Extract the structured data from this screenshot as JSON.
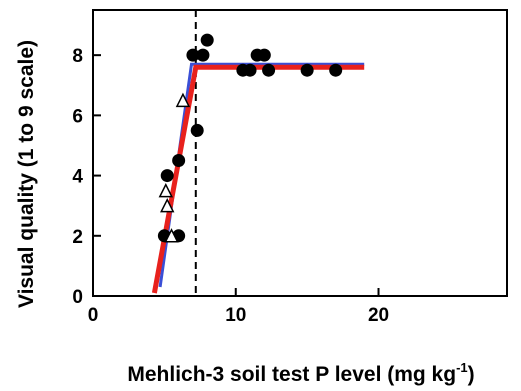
{
  "chart_data": {
    "type": "scatter",
    "xlabel": "Mehlich-3 soil test P level (mg kg",
    "xlabel_sup": "-1",
    "xlabel_close": ")",
    "ylabel": "Visual quality (1 to 9 scale)",
    "xlim": [
      0,
      29
    ],
    "ylim": [
      0,
      9.5
    ],
    "xticks": [
      0,
      10,
      20
    ],
    "yticks": [
      0,
      2,
      4,
      6,
      8
    ],
    "grid": false,
    "series": [
      {
        "marker": "filled-circle",
        "color": "#000000",
        "points": [
          [
            5.0,
            2.0
          ],
          [
            5.2,
            4.0
          ],
          [
            6.0,
            4.5
          ],
          [
            6.0,
            2.0
          ],
          [
            7.0,
            8.0
          ],
          [
            7.3,
            5.5
          ],
          [
            7.7,
            8.0
          ],
          [
            8.0,
            8.5
          ],
          [
            10.5,
            7.5
          ],
          [
            11.0,
            7.5
          ],
          [
            11.5,
            8.0
          ],
          [
            12.0,
            8.0
          ],
          [
            12.3,
            7.5
          ],
          [
            15.0,
            7.5
          ],
          [
            17.0,
            7.5
          ]
        ]
      },
      {
        "marker": "open-triangle",
        "color": "#000000",
        "points": [
          [
            5.1,
            3.5
          ],
          [
            5.2,
            3.0
          ],
          [
            5.5,
            2.0
          ],
          [
            6.3,
            6.5
          ]
        ]
      }
    ],
    "lines": [
      {
        "kind": "segments",
        "color": "#3a4fd6",
        "width": 3,
        "points": [
          [
            4.7,
            0.3
          ],
          [
            6.9,
            7.7
          ],
          [
            19.0,
            7.7
          ]
        ]
      },
      {
        "kind": "segments",
        "color": "#e8211d",
        "width": 5,
        "points": [
          [
            4.3,
            0.1
          ],
          [
            7.2,
            7.6
          ],
          [
            19.0,
            7.6
          ]
        ]
      },
      {
        "kind": "vertical-dashed",
        "color": "#000000",
        "x": 7.2
      }
    ]
  }
}
